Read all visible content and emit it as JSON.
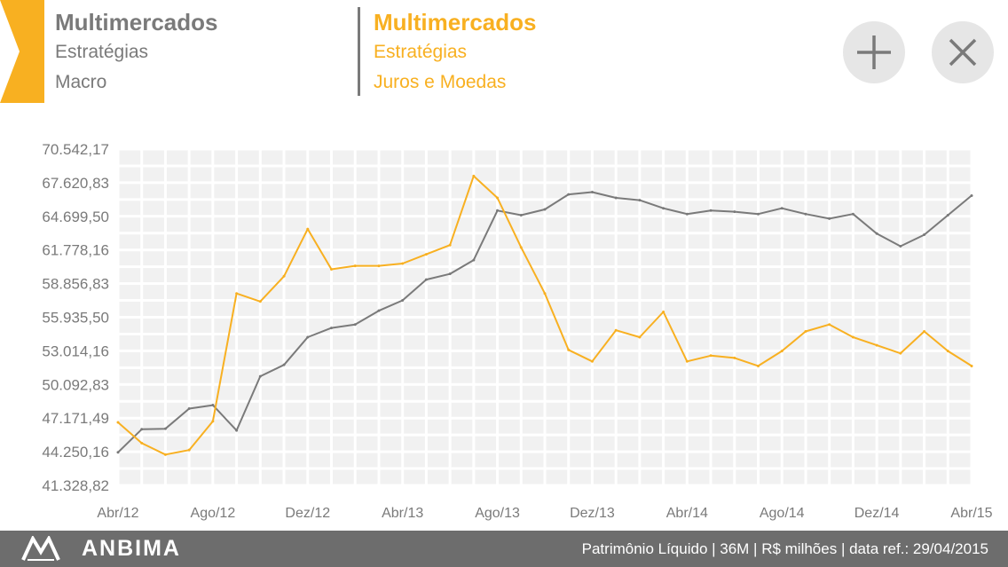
{
  "header": {
    "series_a": {
      "title": "Multimercados",
      "line1": "Estratégias",
      "line2": "Macro",
      "color": "#7a7a7a"
    },
    "series_b": {
      "title": "Multimercados",
      "line1": "Estratégias",
      "line2": "Juros e Moedas",
      "color": "#f8b021"
    },
    "accent_color": "#f8b021",
    "icons": {
      "add": "plus-icon",
      "close": "close-icon"
    }
  },
  "chart_data": {
    "type": "line",
    "x": [
      "Abr/12",
      "Mai/12",
      "Jun/12",
      "Jul/12",
      "Ago/12",
      "Set/12",
      "Out/12",
      "Nov/12",
      "Dez/12",
      "Jan/13",
      "Fev/13",
      "Mar/13",
      "Abr/13",
      "Mai/13",
      "Jun/13",
      "Jul/13",
      "Ago/13",
      "Set/13",
      "Out/13",
      "Nov/13",
      "Dez/13",
      "Jan/14",
      "Fev/14",
      "Mar/14",
      "Abr/14",
      "Mai/14",
      "Jun/14",
      "Jul/14",
      "Ago/14",
      "Set/14",
      "Out/14",
      "Nov/14",
      "Dez/14",
      "Jan/15",
      "Fev/15",
      "Mar/15",
      "Abr/15"
    ],
    "xtick_labels": [
      "Abr/12",
      "Ago/12",
      "Dez/12",
      "Abr/13",
      "Ago/13",
      "Dez/13",
      "Abr/14",
      "Ago/14",
      "Dez/14",
      "Abr/15"
    ],
    "ytick_labels": [
      "70.542,17",
      "67.620,83",
      "64.699,50",
      "61.778,16",
      "58.856,83",
      "55.935,50",
      "53.014,16",
      "50.092,83",
      "47.171,49",
      "44.250,16",
      "41.328,82"
    ],
    "ylim": [
      41328.82,
      70542.17
    ],
    "grid": true,
    "series": [
      {
        "color": "#7a7a7a",
        "values": [
          44200,
          46200,
          46250,
          48000,
          48300,
          46100,
          50800,
          51800,
          54200,
          55000,
          55300,
          56500,
          57400,
          59200,
          59700,
          60900,
          65200,
          64800,
          65300,
          66600,
          66800,
          66300,
          66100,
          65400,
          64900,
          65200,
          65100,
          64900,
          65400,
          64900,
          64500,
          64900,
          63200,
          62100,
          63100,
          64800,
          66500
        ]
      },
      {
        "color": "#f8b021",
        "values": [
          46800,
          45000,
          44000,
          44400,
          46900,
          58000,
          57300,
          59500,
          63600,
          60100,
          60400,
          60400,
          60600,
          61400,
          62200,
          68200,
          66300,
          62000,
          58000,
          53100,
          52100,
          54800,
          54200,
          56400,
          52100,
          52600,
          52400,
          51700,
          53000,
          54700,
          55300,
          54200,
          53500,
          52800,
          54700,
          53000,
          51700
        ]
      }
    ]
  },
  "footer": {
    "brand": "ANBIMA",
    "info": "Patrimônio Líquido | 36M | R$ milhões | data ref.: 29/04/2015"
  }
}
